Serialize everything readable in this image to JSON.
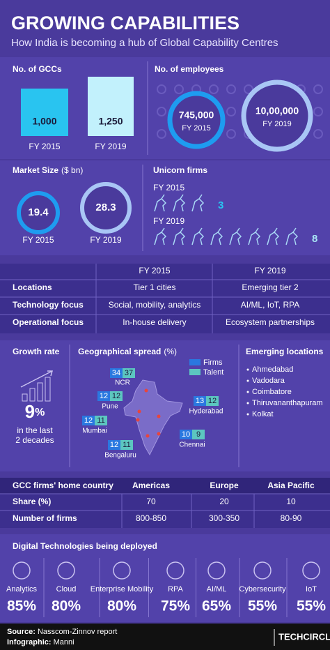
{
  "header": {
    "title": "GROWING CAPABILITIES",
    "subtitle": "How India is becoming a hub of Global Capability Centres"
  },
  "gccs": {
    "label": "No. of GCCs",
    "items": [
      {
        "value": "1,000",
        "year": "FY 2015"
      },
      {
        "value": "1,250",
        "year": "FY 2019"
      }
    ]
  },
  "employees": {
    "label": "No. of employees",
    "items": [
      {
        "value": "745,000",
        "year": "FY 2015"
      },
      {
        "value": "10,00,000",
        "year": "FY 2019"
      }
    ]
  },
  "market": {
    "label": "Market Size",
    "unit": "($ bn)",
    "items": [
      {
        "value": "19.4",
        "year": "FY 2015"
      },
      {
        "value": "28.3",
        "year": "FY 2019"
      }
    ]
  },
  "unicorns": {
    "label": "Unicorn firms",
    "items": [
      {
        "year": "FY 2015",
        "count": 3
      },
      {
        "year": "FY 2019",
        "count": 8
      }
    ]
  },
  "comparison": {
    "columns": [
      "FY 2015",
      "FY 2019"
    ],
    "rows": [
      {
        "label": "Locations",
        "values": [
          "Tier 1 cities",
          "Emerging tier 2"
        ]
      },
      {
        "label": "Technology focus",
        "values": [
          "Social, mobility, analytics",
          "AI/ML, IoT, RPA"
        ]
      },
      {
        "label": "Operational focus",
        "values": [
          "In-house delivery",
          "Ecosystem partnerships"
        ]
      }
    ]
  },
  "growth": {
    "label": "Growth rate",
    "value": "9",
    "unit": "%",
    "note": [
      "in the last",
      "2 decades"
    ]
  },
  "geo": {
    "label": "Geographical spread",
    "unit": "(%)",
    "legend": [
      "Firms",
      "Talent"
    ],
    "cities": [
      {
        "name": "NCR",
        "firms": 34,
        "talent": 37
      },
      {
        "name": "Pune",
        "firms": 12,
        "talent": 12
      },
      {
        "name": "Mumbai",
        "firms": 12,
        "talent": 11
      },
      {
        "name": "Hyderabad",
        "firms": 13,
        "talent": 12
      },
      {
        "name": "Bengaluru",
        "firms": 12,
        "talent": 11
      },
      {
        "name": "Chennai",
        "firms": 10,
        "talent": 9
      }
    ]
  },
  "emerging": {
    "label": "Emerging locations",
    "items": [
      "Ahmedabad",
      "Vadodara",
      "Coimbatore",
      "Thiruvananthapuram",
      "Kolkat"
    ]
  },
  "home": {
    "header": [
      "GCC firms' home country",
      "Americas",
      "Europe",
      "Asia Pacific"
    ],
    "rows": [
      [
        "Share (%)",
        "70",
        "20",
        "10"
      ],
      [
        "Number of firms",
        "800-850",
        "300-350",
        "80-90"
      ]
    ]
  },
  "digital": {
    "title": "Digital Technologies being deployed",
    "items": [
      {
        "name": "Analytics",
        "value": "85%"
      },
      {
        "name": "Cloud",
        "value": "80%"
      },
      {
        "name": "Enterprise Mobility",
        "value": "80%"
      },
      {
        "name": "RPA",
        "value": "75%"
      },
      {
        "name": "AI/ML",
        "value": "65%"
      },
      {
        "name": "Cybersecurity",
        "value": "55%"
      },
      {
        "name": "IoT",
        "value": "55%"
      }
    ]
  },
  "footer": {
    "source_label": "Source:",
    "source": "Nasscom-Zinnov report",
    "credit_label": "Infographic:",
    "credit": "Manni",
    "brand": "TECHCIRCLE"
  }
}
